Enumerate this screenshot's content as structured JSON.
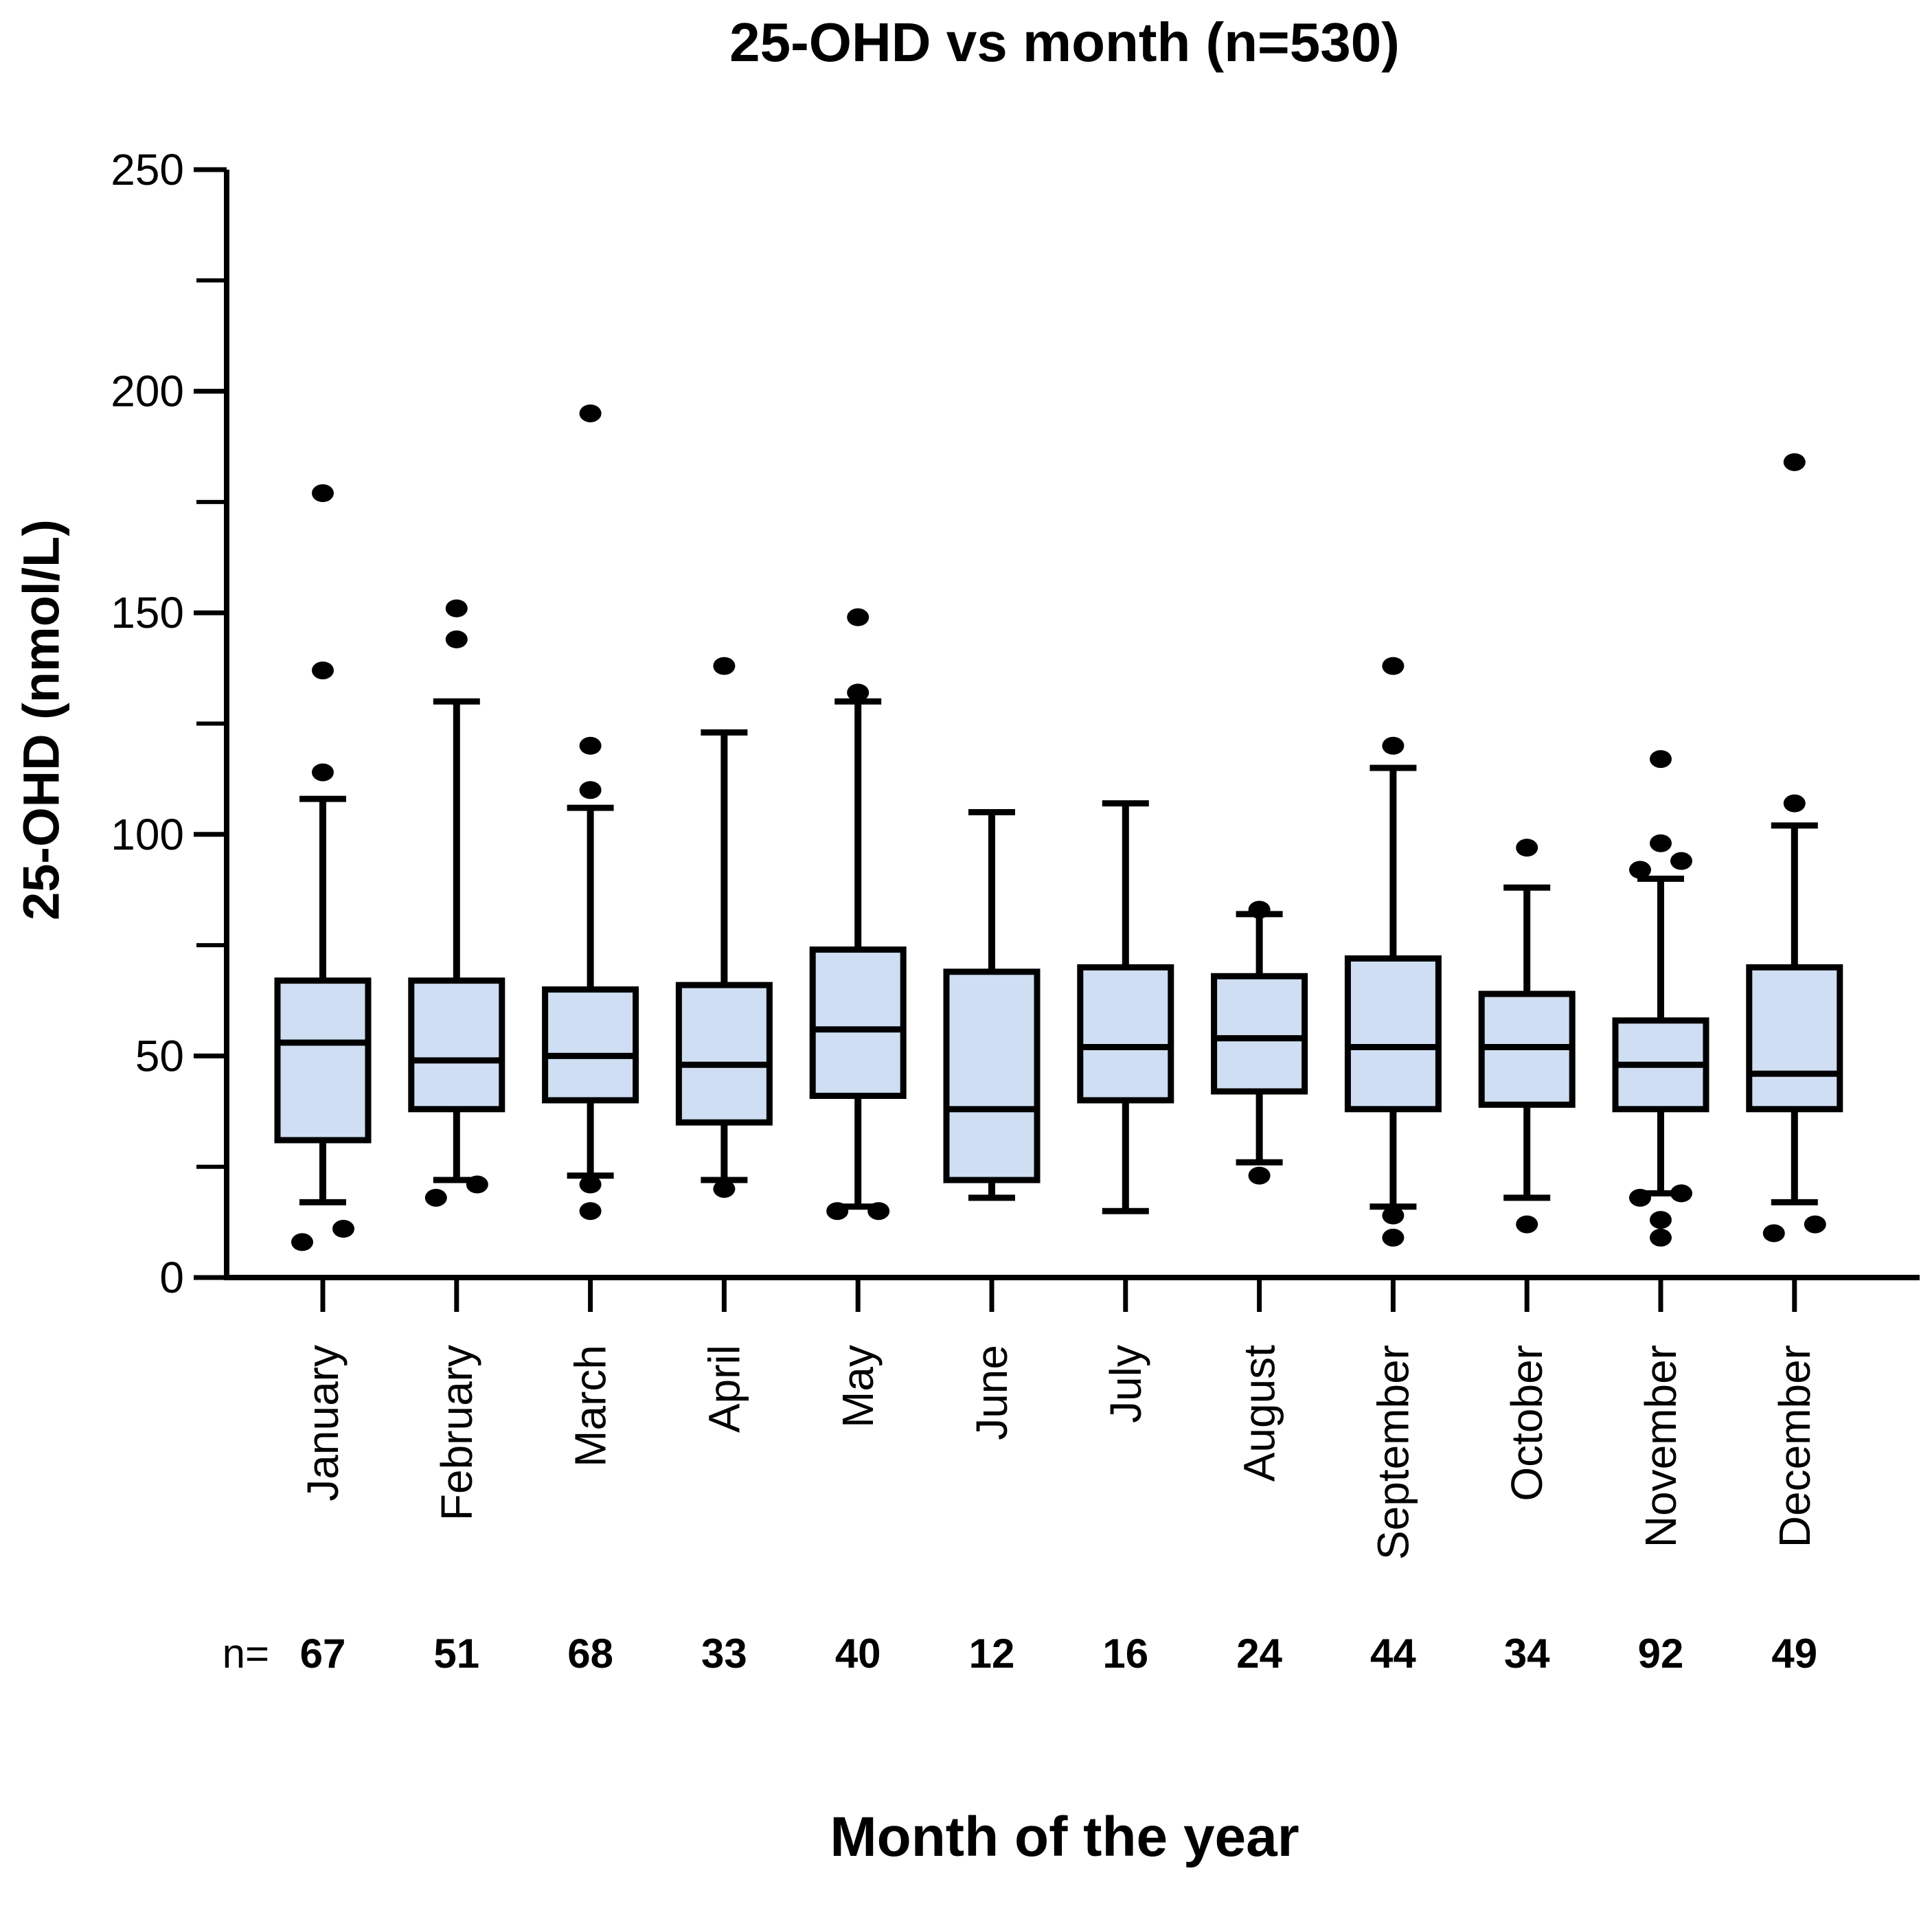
{
  "chart_data": {
    "type": "box",
    "title": "25-OHD vs month (n=530)",
    "ylabel": "25-OHD (nmol/L)",
    "xlabel": "Month of the year",
    "n_prefix": "n=",
    "total_n": 530,
    "ylim": [
      0,
      250
    ],
    "yticks_major": [
      0,
      50,
      100,
      150,
      200,
      250
    ],
    "yticks_minor": [
      25,
      75,
      125,
      175,
      225
    ],
    "grid": "off",
    "ink_color": "#000000",
    "box_fill_color": "#cfdef2",
    "categories": [
      "January",
      "February",
      "March",
      "April",
      "May",
      "June",
      "July",
      "August",
      "September",
      "October",
      "November",
      "December"
    ],
    "series": [
      {
        "month": "January",
        "n": 67,
        "whisker_low": 17,
        "q1": 31,
        "median": 53,
        "q3": 67,
        "whisker_high": 108,
        "outliers_low": [
          11,
          8
        ],
        "outliers_high": [
          114,
          137,
          177
        ]
      },
      {
        "month": "February",
        "n": 51,
        "whisker_low": 22,
        "q1": 38,
        "median": 49,
        "q3": 67,
        "whisker_high": 130,
        "outliers_low": [
          21,
          18
        ],
        "outliers_high": [
          144,
          151
        ]
      },
      {
        "month": "March",
        "n": 68,
        "whisker_low": 23,
        "q1": 40,
        "median": 50,
        "q3": 65,
        "whisker_high": 106,
        "outliers_low": [
          21,
          15
        ],
        "outliers_high": [
          110,
          120,
          195
        ]
      },
      {
        "month": "April",
        "n": 33,
        "whisker_low": 22,
        "q1": 35,
        "median": 48,
        "q3": 66,
        "whisker_high": 123,
        "outliers_low": [
          20
        ],
        "outliers_high": [
          138
        ]
      },
      {
        "month": "May",
        "n": 40,
        "whisker_low": 16,
        "q1": 41,
        "median": 56,
        "q3": 74,
        "whisker_high": 130,
        "outliers_low": [
          15,
          15
        ],
        "outliers_high": [
          132,
          149
        ]
      },
      {
        "month": "June",
        "n": 12,
        "whisker_low": 18,
        "q1": 22,
        "median": 38,
        "q3": 69,
        "whisker_high": 105,
        "outliers_low": [],
        "outliers_high": []
      },
      {
        "month": "July",
        "n": 16,
        "whisker_low": 15,
        "q1": 40,
        "median": 52,
        "q3": 70,
        "whisker_high": 107,
        "outliers_low": [],
        "outliers_high": []
      },
      {
        "month": "August",
        "n": 24,
        "whisker_low": 26,
        "q1": 42,
        "median": 54,
        "q3": 68,
        "whisker_high": 82,
        "outliers_low": [
          23
        ],
        "outliers_high": [
          83
        ]
      },
      {
        "month": "September",
        "n": 44,
        "whisker_low": 16,
        "q1": 38,
        "median": 52,
        "q3": 72,
        "whisker_high": 115,
        "outliers_low": [
          14,
          9
        ],
        "outliers_high": [
          120,
          138
        ]
      },
      {
        "month": "October",
        "n": 34,
        "whisker_low": 18,
        "q1": 39,
        "median": 52,
        "q3": 64,
        "whisker_high": 88,
        "outliers_low": [
          12
        ],
        "outliers_high": [
          97
        ]
      },
      {
        "month": "November",
        "n": 92,
        "whisker_low": 19,
        "q1": 38,
        "median": 48,
        "q3": 58,
        "whisker_high": 90,
        "outliers_low": [
          19,
          18,
          13,
          9
        ],
        "outliers_high": [
          92,
          94,
          98,
          117
        ]
      },
      {
        "month": "December",
        "n": 49,
        "whisker_low": 17,
        "q1": 38,
        "median": 46,
        "q3": 70,
        "whisker_high": 102,
        "outliers_low": [
          12,
          10
        ],
        "outliers_high": [
          107,
          184
        ]
      }
    ]
  }
}
